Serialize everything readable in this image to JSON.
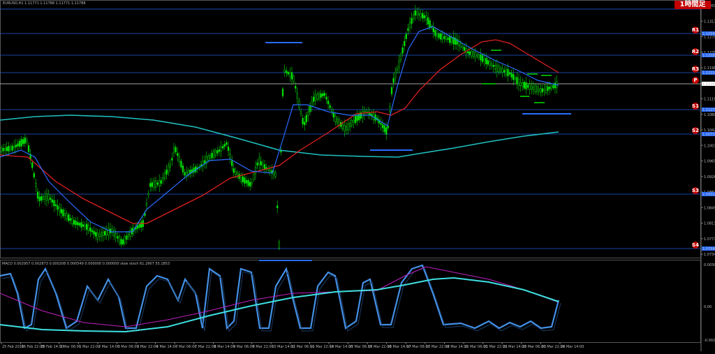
{
  "header": {
    "symbol_line": "EURUSD,H1 1.11771 1.11788 1.11771 1.11788",
    "timeframe_badge": "1時間足"
  },
  "indicator": {
    "legend": "MACD 0.002957 0.002873 0.000208 0.000549 0.000000 0.000000 slow stoch 61.2907 55.1853",
    "axis_top": "0.003074",
    "axis_mid": "0.00",
    "axis_bottom": "-0.002888"
  },
  "price_axis": [
    "1.13598",
    "1.13136",
    "1.12705",
    "1.12351",
    "1.11966",
    "1.11581",
    "1.11190",
    "1.10806",
    "1.10421",
    "1.10036",
    "1.09652",
    "1.09262",
    "1.08876",
    "1.08491",
    "1.08116",
    "1.07731",
    "1.07345"
  ],
  "levels": [
    {
      "label": "R1",
      "price": "1.12949",
      "color": "#2a6cff"
    },
    {
      "label": "R2",
      "price": "1.12580",
      "color": "#2a6cff"
    },
    {
      "label": "R3",
      "price": "1.12210",
      "color": "#2a6cff"
    },
    {
      "label": "P",
      "price": "1.11782",
      "color": "#ffffff"
    },
    {
      "label": "S1",
      "price": "1.11271",
      "color": "#2a6cff"
    },
    {
      "label": "S2",
      "price": "1.10711",
      "color": "#2a6cff"
    },
    {
      "label": "S3",
      "price": "1.09318",
      "color": "#2a6cff"
    },
    {
      "label": "S4",
      "price": "1.07946",
      "color": "#2a6cff"
    }
  ],
  "time_labels": [
    "25 Feb 2016",
    "26 Feb 22:00",
    "29 Feb 14:00",
    "1 Mar 06:00",
    "1 Mar 22:00",
    "2 Mar 14:00",
    "3 Mar 06:00",
    "3 Mar 22:00",
    "4 Mar 14:00",
    "7 Mar 06:00",
    "7 Mar 22:00",
    "8 Mar 14:00",
    "9 Mar 06:00",
    "9 Mar 22:00",
    "10 Mar 14:00",
    "11 Mar 06:00",
    "11 Mar 22:00",
    "14 Mar 14:00",
    "15 Mar 06:00",
    "15 Mar 22:00",
    "16 Mar 14:00",
    "17 Mar 06:00",
    "17 Mar 22:00",
    "18 Mar 14:00",
    "21 Mar 06:00",
    "21 Mar 22:00",
    "22 Mar 14:00",
    "23 Mar 06:00",
    "23 Mar 22:00",
    "24 Mar 14:00"
  ],
  "colors": {
    "candle": "#00e000",
    "ma_fast": "#2a6cff",
    "ma_mid": "#e02020",
    "ma_slow": "#20c0c0",
    "macd": "#9bd4ff",
    "signal": "#c020c0",
    "stoch": "#4aa0ff",
    "stoch_slow": "#3ee0e0"
  }
}
